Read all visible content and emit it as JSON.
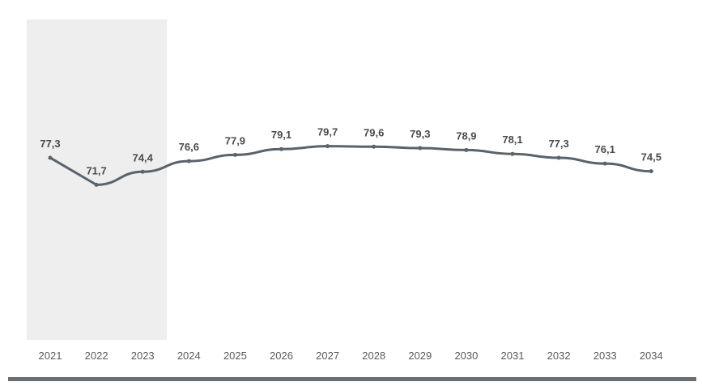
{
  "chart_data": {
    "type": "line",
    "x": [
      "2021",
      "2022",
      "2023",
      "2024",
      "2025",
      "2026",
      "2027",
      "2028",
      "2029",
      "2030",
      "2031",
      "2032",
      "2033",
      "2034"
    ],
    "series": [
      {
        "values": [
          77.3,
          71.7,
          74.4,
          76.6,
          77.9,
          79.1,
          79.7,
          79.6,
          79.3,
          78.9,
          78.1,
          77.3,
          76.1,
          74.5
        ],
        "labels": [
          "77,3",
          "71,7",
          "74,4",
          "76,6",
          "77,9",
          "79,1",
          "79,7",
          "79,6",
          "79,3",
          "78,9",
          "78,1",
          "77,3",
          "76,1",
          "74,5"
        ]
      }
    ],
    "highlight_range": [
      "2021",
      "2023"
    ],
    "ylim": [
      30,
      110
    ],
    "grid": false,
    "colors": {
      "line": "#5b6268",
      "highlight_band": "#eeeeee",
      "baseline": "#6b6f72"
    }
  }
}
